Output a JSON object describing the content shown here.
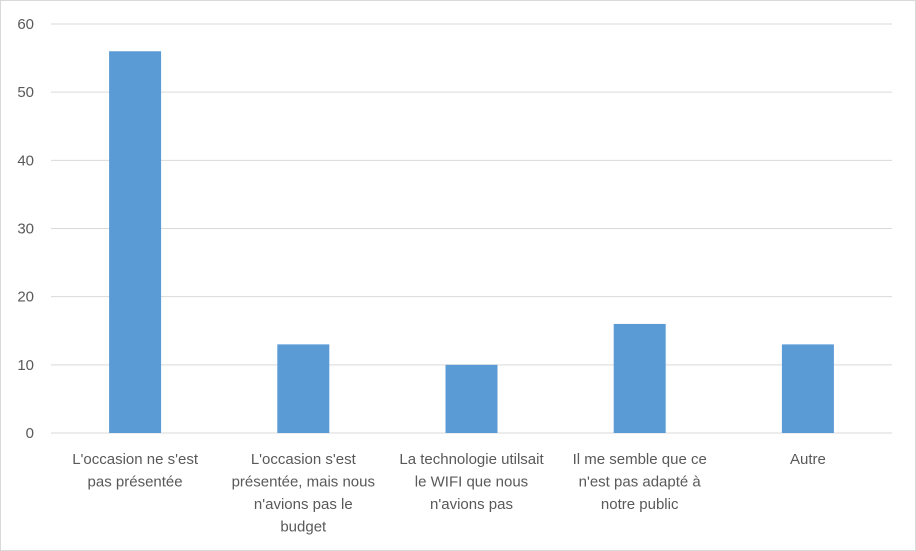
{
  "chart_data": {
    "type": "bar",
    "title": "",
    "xlabel": "",
    "ylabel": "",
    "categories": [
      "L'occasion ne s'est pas présentée",
      "L'occasion s'est présentée, mais nous n'avions pas le budget",
      "La technologie utilsait le WIFI que nous n'avions pas",
      "Il me semble que ce n'est pas adapté à notre public",
      "Autre"
    ],
    "category_label_lines": [
      [
        "L'occasion ne s'est",
        "pas présentée"
      ],
      [
        "L'occasion s'est",
        "présentée, mais nous",
        "n'avions pas le",
        "budget"
      ],
      [
        "La technologie utilsait",
        "le WIFI que nous",
        "n'avions pas"
      ],
      [
        "Il me semble que ce",
        "n'est pas adapté à",
        "notre public"
      ],
      [
        "Autre"
      ]
    ],
    "values": [
      56,
      13,
      10,
      16,
      13
    ],
    "ylim": [
      0,
      60
    ],
    "yticks": [
      0,
      10,
      20,
      30,
      40,
      50,
      60
    ],
    "grid": true,
    "legend": "none",
    "bar_color": "#5b9bd5",
    "grid_color": "#d9d9d9",
    "text_color": "#595959"
  }
}
